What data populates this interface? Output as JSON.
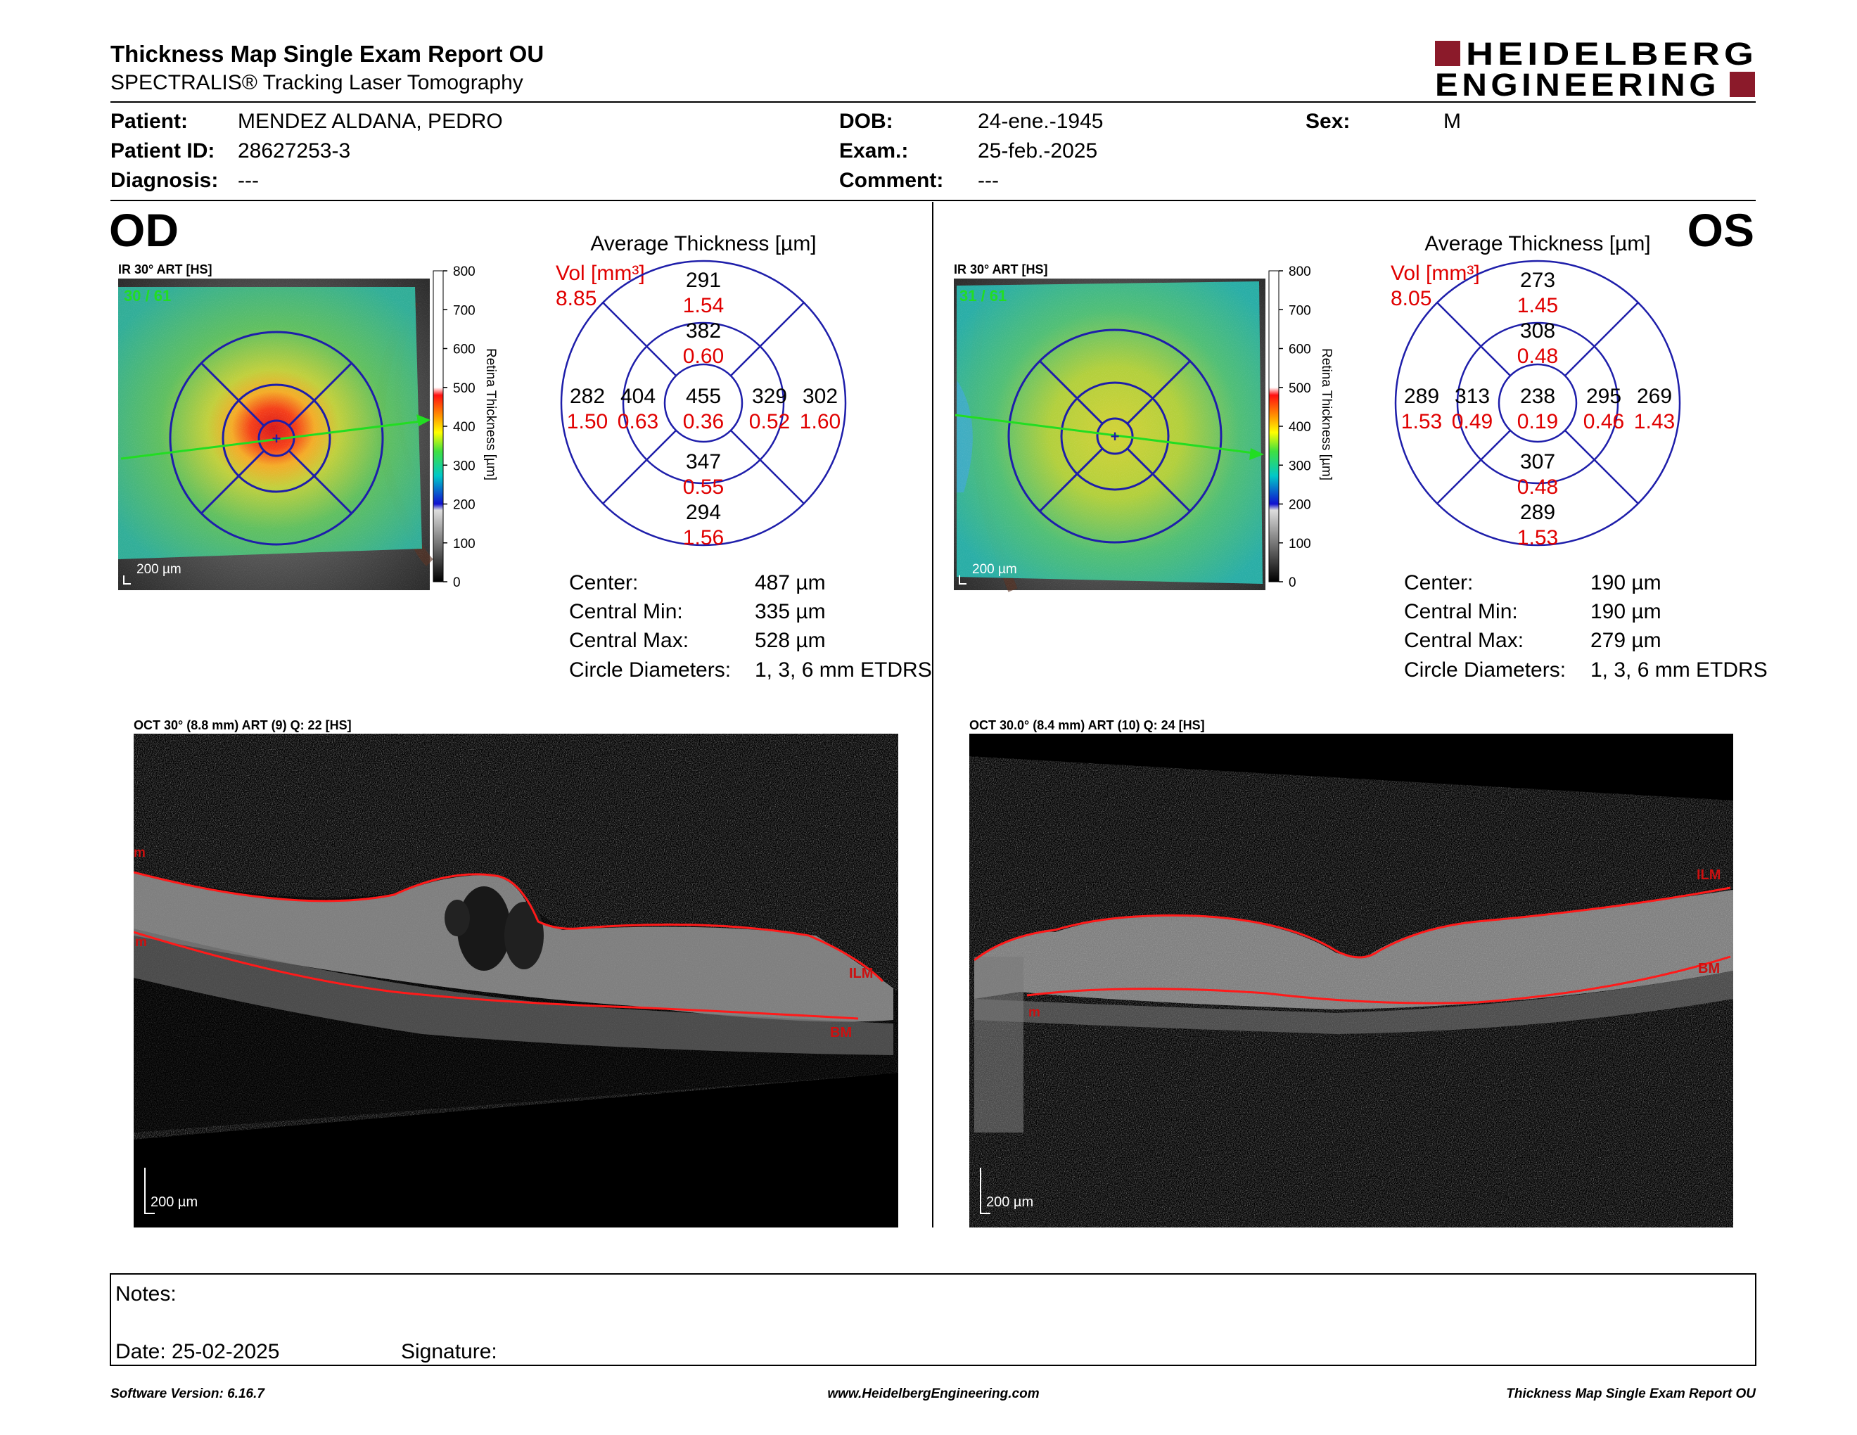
{
  "header": {
    "title": "Thickness Map Single Exam Report OU",
    "subtitle": "SPECTRALIS® Tracking Laser Tomography",
    "logo_line1": "HEIDELBERG",
    "logo_line2": "ENGINEERING"
  },
  "patient": {
    "patient_label": "Patient:",
    "patient_value": "MENDEZ ALDANA, PEDRO",
    "id_label": "Patient ID:",
    "id_value": "28627253-3",
    "diagnosis_label": "Diagnosis:",
    "diagnosis_value": "---",
    "dob_label": "DOB:",
    "dob_value": "24-ene.-1945",
    "exam_label": "Exam.:",
    "exam_value": "25-feb.-2025",
    "comment_label": "Comment:",
    "comment_value": "---",
    "sex_label": "Sex:",
    "sex_value": "M"
  },
  "colorbar": {
    "ticks": [
      "800",
      "700",
      "600",
      "500",
      "400",
      "300",
      "200",
      "100",
      "0"
    ],
    "label": "Retina Thickness [µm]"
  },
  "od": {
    "eye_label": "OD",
    "ir_title": "IR 30° ART [HS]",
    "frame_count": "30 / 61",
    "scale": "200 µm",
    "avg_title": "Average Thickness [µm]",
    "vol_label": "Vol [mm³]",
    "vol_total": "8.85",
    "sectors": {
      "center": {
        "t": "455",
        "v": "0.36"
      },
      "inner_superior": {
        "t": "382",
        "v": "0.60"
      },
      "inner_inferior": {
        "t": "347",
        "v": "0.55"
      },
      "inner_left": {
        "t": "404",
        "v": "0.63"
      },
      "inner_right": {
        "t": "329",
        "v": "0.52"
      },
      "outer_superior": {
        "t": "291",
        "v": "1.54"
      },
      "outer_inferior": {
        "t": "294",
        "v": "1.56"
      },
      "outer_left": {
        "t": "282",
        "v": "1.50"
      },
      "outer_right": {
        "t": "302",
        "v": "1.60"
      }
    },
    "stats": {
      "center_label": "Center:",
      "center_value": "487 µm",
      "min_label": "Central Min:",
      "min_value": "335 µm",
      "max_label": "Central Max:",
      "max_value": "528 µm",
      "diam_label": "Circle Diameters:",
      "diam_value": "1, 3, 6 mm ETDRS"
    },
    "oct_title": "OCT 30° (8.8 mm) ART (9) Q: 22 [HS]",
    "oct_scale": "200 µm",
    "ilm_label": "ILM",
    "bm_label": "BM",
    "edge_label_1": "m",
    "edge_label_2": "m"
  },
  "os": {
    "eye_label": "OS",
    "ir_title": "IR 30° ART [HS]",
    "frame_count": "31 / 61",
    "scale": "200 µm",
    "avg_title": "Average Thickness [µm]",
    "vol_label": "Vol [mm³]",
    "vol_total": "8.05",
    "sectors": {
      "center": {
        "t": "238",
        "v": "0.19"
      },
      "inner_superior": {
        "t": "308",
        "v": "0.48"
      },
      "inner_inferior": {
        "t": "307",
        "v": "0.48"
      },
      "inner_left": {
        "t": "313",
        "v": "0.49"
      },
      "inner_right": {
        "t": "295",
        "v": "0.46"
      },
      "outer_superior": {
        "t": "273",
        "v": "1.45"
      },
      "outer_inferior": {
        "t": "289",
        "v": "1.53"
      },
      "outer_left": {
        "t": "289",
        "v": "1.53"
      },
      "outer_right": {
        "t": "269",
        "v": "1.43"
      }
    },
    "stats": {
      "center_label": "Center:",
      "center_value": "190 µm",
      "min_label": "Central Min:",
      "min_value": "190 µm",
      "max_label": "Central Max:",
      "max_value": "279 µm",
      "diam_label": "Circle Diameters:",
      "diam_value": "1, 3, 6 mm ETDRS"
    },
    "oct_title": "OCT 30.0° (8.4 mm) ART (10) Q: 24 [HS]",
    "oct_scale": "200 µm",
    "ilm_label": "ILM",
    "bm_label": "BM",
    "edge_label_1": "m"
  },
  "notes": {
    "notes_label": "Notes:",
    "date_label": "Date: 25-02-2025",
    "signature_label": "Signature:"
  },
  "footer": {
    "version": "Software Version: 6.16.7",
    "website": "www.HeidelbergEngineering.com",
    "report_name": "Thickness Map Single Exam Report OU"
  },
  "colors": {
    "brand_red": "#8b1a2a",
    "vol_red": "#e00000",
    "grid_blue": "#1e1eaa",
    "scan_green": "#22dd22",
    "segmentation_red": "#ff1a1a"
  }
}
